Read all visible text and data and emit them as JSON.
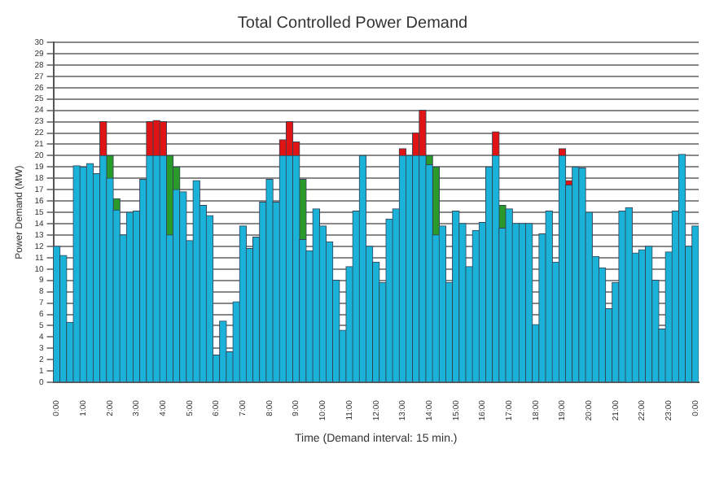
{
  "chart_data": {
    "type": "bar",
    "title": "Total Controlled Power Demand",
    "xlabel": "Time (Demand interval: 15 min.)",
    "ylabel": "Power Demand (MW)",
    "categories": [
      "0:00",
      null,
      null,
      null,
      "1:00",
      null,
      null,
      null,
      "2:00",
      null,
      null,
      null,
      "3:00",
      null,
      null,
      null,
      "4:00",
      null,
      null,
      null,
      "5:00",
      null,
      null,
      null,
      "6:00",
      null,
      null,
      null,
      "7:00",
      null,
      null,
      null,
      "8:00",
      null,
      null,
      null,
      "9:00",
      null,
      null,
      null,
      "10:00",
      null,
      null,
      null,
      "11:00",
      null,
      null,
      null,
      "12:00",
      null,
      null,
      null,
      "13:00",
      null,
      null,
      null,
      "14:00",
      null,
      null,
      null,
      "15:00",
      null,
      null,
      null,
      "16:00",
      null,
      null,
      null,
      "17:00",
      null,
      null,
      null,
      "18:00",
      null,
      null,
      null,
      "19:00",
      null,
      null,
      null,
      "20:00",
      null,
      null,
      null,
      "21:00",
      null,
      null,
      null,
      "22:00",
      null,
      null,
      null,
      "23:00",
      null,
      null,
      null,
      "0:00"
    ],
    "stacked": true,
    "series": [
      {
        "color": "#1ab2d8",
        "values": [
          12.0,
          11.2,
          5.3,
          19.1,
          19.0,
          19.3,
          18.4,
          20,
          18,
          15.2,
          13.0,
          15.0,
          15.1,
          17.9,
          20,
          20,
          20,
          13,
          17,
          16.8,
          12.5,
          17.8,
          15.6,
          14.7,
          2.4,
          5.4,
          2.7,
          7.1,
          13.8,
          11.8,
          12.8,
          15.9,
          17.9,
          15.9,
          20,
          20,
          20,
          12.6,
          11.6,
          15.3,
          13.8,
          12.4,
          9.0,
          4.6,
          10.2,
          15.1,
          20.0,
          12.0,
          10.6,
          8.8,
          14.4,
          15.3,
          20,
          20,
          20,
          20,
          19.2,
          13,
          13.8,
          8.8,
          15.1,
          14.0,
          10.2,
          13.4,
          14.1,
          19.0,
          20,
          13.6,
          15.3,
          14,
          14,
          14,
          5.1,
          13.1,
          15.1,
          10.6,
          20,
          17.4,
          19,
          18.9,
          15,
          11.1,
          10.1,
          6.5,
          8.8,
          15.1,
          15.4,
          11.4,
          11.7,
          12,
          9,
          4.7,
          11.5,
          15.1,
          20.1,
          12,
          13.8
        ]
      },
      {
        "color": "#2a9a2a",
        "values": [
          null,
          null,
          null,
          null,
          null,
          null,
          null,
          null,
          2,
          1,
          null,
          null,
          null,
          null,
          null,
          null,
          null,
          7,
          2,
          null,
          null,
          null,
          null,
          null,
          null,
          null,
          null,
          null,
          null,
          null,
          null,
          null,
          null,
          null,
          null,
          null,
          null,
          5.3,
          null,
          null,
          null,
          null,
          null,
          null,
          null,
          null,
          null,
          null,
          null,
          null,
          null,
          null,
          null,
          null,
          null,
          null,
          0.8,
          6,
          null,
          null,
          null,
          null,
          null,
          null,
          null,
          null,
          null,
          2,
          null,
          null,
          null,
          null,
          null,
          null,
          null,
          null,
          null,
          null,
          null,
          null,
          null,
          null,
          null,
          null,
          null,
          null,
          null,
          null,
          null,
          null,
          null,
          null,
          null,
          null,
          null,
          null,
          null
        ]
      },
      {
        "color": "#e01414",
        "values": [
          null,
          null,
          null,
          null,
          null,
          null,
          null,
          3,
          null,
          null,
          null,
          null,
          null,
          null,
          3,
          3.1,
          3,
          null,
          null,
          null,
          null,
          null,
          null,
          null,
          null,
          null,
          null,
          null,
          null,
          null,
          null,
          null,
          null,
          null,
          1.4,
          3,
          1.2,
          null,
          null,
          null,
          null,
          null,
          null,
          null,
          null,
          null,
          null,
          null,
          null,
          null,
          null,
          null,
          0.6,
          null,
          2,
          4,
          null,
          null,
          null,
          null,
          null,
          null,
          null,
          null,
          null,
          null,
          2.1,
          null,
          null,
          null,
          null,
          null,
          null,
          null,
          null,
          null,
          0.6,
          0.4,
          null,
          null,
          null,
          null,
          null,
          null,
          null,
          null,
          null,
          null,
          null,
          null,
          null,
          null,
          null,
          null,
          null,
          null,
          null
        ]
      }
    ],
    "ylim": [
      0,
      30
    ],
    "yticks": [
      0,
      1,
      2,
      3,
      4,
      5,
      6,
      7,
      8,
      9,
      10,
      11,
      12,
      13,
      14,
      15,
      16,
      17,
      18,
      19,
      20,
      21,
      22,
      23,
      24,
      25,
      26,
      27,
      28,
      29,
      30
    ],
    "grid": "y",
    "legend": false
  }
}
